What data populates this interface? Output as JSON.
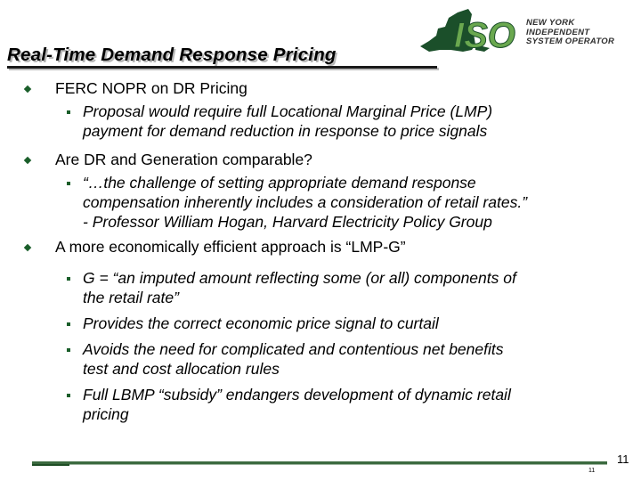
{
  "title": "Real-Time Demand Response Pricing",
  "logo": {
    "mark": "ISO",
    "line1": "NEW YORK",
    "line2": "INDEPENDENT",
    "line3": "SYSTEM OPERATOR"
  },
  "colors": {
    "bullet": "#1a5e2a",
    "logo_green": "#6aa84f",
    "logo_dark": "#1b4f2a"
  },
  "bullets": [
    {
      "text": "FERC NOPR on DR Pricing",
      "sub": [
        {
          "lines": [
            "Proposal would require full Locational Marginal Price (LMP)",
            "payment for demand reduction in response to price signals"
          ]
        }
      ]
    },
    {
      "text": "Are DR and Generation comparable?",
      "sub": [
        {
          "lines": [
            "“…the challenge of setting appropriate demand response",
            "compensation inherently includes a consideration of retail rates.”",
            "- Professor William Hogan, Harvard Electricity Policy Group"
          ]
        }
      ]
    },
    {
      "text": "A more economically efficient approach is “LMP-G”",
      "sub": [
        {
          "lines": [
            "G = “an imputed amount reflecting some (or all) components of",
            "the retail rate”"
          ]
        },
        {
          "lines": [
            "Provides the correct economic price signal to curtail"
          ]
        },
        {
          "lines": [
            "Avoids the need for complicated and contentious net benefits",
            "test and cost allocation rules"
          ]
        },
        {
          "lines": [
            "Full LBMP “subsidy” endangers development of dynamic retail",
            "pricing"
          ]
        }
      ]
    }
  ],
  "page_number": "11",
  "page_number_small": "11"
}
